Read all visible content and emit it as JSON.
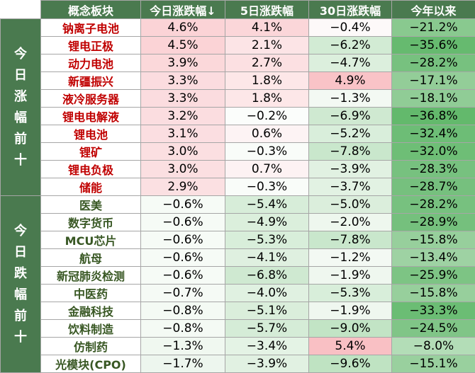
{
  "headers": [
    "概念板块",
    "今日涨跌幅↓",
    "5日涨跌幅",
    "30日涨跌幅",
    "今年以来"
  ],
  "groups": [
    {
      "label": "今日涨幅前十",
      "kind": "up",
      "rows": [
        {
          "name": "钠离子电池",
          "cells": [
            {
              "v": "4.6%",
              "c": "#fbd3d6"
            },
            {
              "v": "4.1%",
              "c": "#fbd6d9"
            },
            {
              "v": "−0.4%",
              "c": "#fdf9f9"
            },
            {
              "v": "−21.2%",
              "c": "#89c98f"
            }
          ]
        },
        {
          "name": "锂电正极",
          "cells": [
            {
              "v": "4.5%",
              "c": "#fbd3d6"
            },
            {
              "v": "2.1%",
              "c": "#fce4e6"
            },
            {
              "v": "−6.2%",
              "c": "#d2ebd4"
            },
            {
              "v": "−35.6%",
              "c": "#66ba6f"
            }
          ]
        },
        {
          "name": "动力电池",
          "cells": [
            {
              "v": "3.9%",
              "c": "#fbd8da"
            },
            {
              "v": "2.7%",
              "c": "#fce0e2"
            },
            {
              "v": "−4.7%",
              "c": "#dcefdd"
            },
            {
              "v": "−28.2%",
              "c": "#77c17f"
            }
          ]
        },
        {
          "name": "新疆振兴",
          "cells": [
            {
              "v": "3.3%",
              "c": "#fbdcdf"
            },
            {
              "v": "1.8%",
              "c": "#fde7e8"
            },
            {
              "v": "4.9%",
              "c": "#f9c3c7"
            },
            {
              "v": "−17.1%",
              "c": "#93cd98"
            }
          ]
        },
        {
          "name": "液冷服务器",
          "cells": [
            {
              "v": "3.3%",
              "c": "#fbdcdf"
            },
            {
              "v": "1.8%",
              "c": "#fde7e8"
            },
            {
              "v": "−1.3%",
              "c": "#f3f9f3"
            },
            {
              "v": "−18.1%",
              "c": "#90cc96"
            }
          ]
        },
        {
          "name": "锂电电解液",
          "cells": [
            {
              "v": "3.2%",
              "c": "#fbdde0"
            },
            {
              "v": "−0.2%",
              "c": "#fbfdfb"
            },
            {
              "v": "−6.9%",
              "c": "#cfe9d1"
            },
            {
              "v": "−36.8%",
              "c": "#63b96c"
            }
          ]
        },
        {
          "name": "锂电池",
          "cells": [
            {
              "v": "3.1%",
              "c": "#fbdee1"
            },
            {
              "v": "0.6%",
              "c": "#fdf3f4"
            },
            {
              "v": "−5.2%",
              "c": "#d9eedb"
            },
            {
              "v": "−32.4%",
              "c": "#6dbd76"
            }
          ]
        },
        {
          "name": "锂矿",
          "cells": [
            {
              "v": "3.0%",
              "c": "#fbdfe1"
            },
            {
              "v": "−0.3%",
              "c": "#f9fcf9"
            },
            {
              "v": "−7.8%",
              "c": "#c9e7cc"
            },
            {
              "v": "−32.0%",
              "c": "#6ebe76"
            }
          ]
        },
        {
          "name": "锂电负极",
          "cells": [
            {
              "v": "3.0%",
              "c": "#fbdfe1"
            },
            {
              "v": "0.7%",
              "c": "#fdf2f3"
            },
            {
              "v": "−3.9%",
              "c": "#e1f1e2"
            },
            {
              "v": "−28.3%",
              "c": "#77c17f"
            }
          ]
        },
        {
          "name": "储能",
          "cells": [
            {
              "v": "2.9%",
              "c": "#fbe0e2"
            },
            {
              "v": "−0.3%",
              "c": "#f9fcf9"
            },
            {
              "v": "−3.7%",
              "c": "#e2f2e3"
            },
            {
              "v": "−28.7%",
              "c": "#76c07e"
            }
          ]
        }
      ]
    },
    {
      "label": "今日跌幅前十",
      "kind": "down",
      "rows": [
        {
          "name": "医美",
          "cells": [
            {
              "v": "−0.6%",
              "c": "#f6fbf6"
            },
            {
              "v": "−5.4%",
              "c": "#d7edd9"
            },
            {
              "v": "−5.0%",
              "c": "#dbeedc"
            },
            {
              "v": "−28.2%",
              "c": "#77c17f"
            }
          ]
        },
        {
          "name": "数字货币",
          "cells": [
            {
              "v": "−0.6%",
              "c": "#f6fbf6"
            },
            {
              "v": "−4.9%",
              "c": "#dbefdc"
            },
            {
              "v": "−2.0%",
              "c": "#eef7ee"
            },
            {
              "v": "−28.9%",
              "c": "#75c07d"
            }
          ]
        },
        {
          "name": "MCU芯片",
          "cells": [
            {
              "v": "−0.6%",
              "c": "#f6fbf6"
            },
            {
              "v": "−5.3%",
              "c": "#d8eeda"
            },
            {
              "v": "−7.8%",
              "c": "#c9e7cc"
            },
            {
              "v": "−15.8%",
              "c": "#97cf9c"
            }
          ]
        },
        {
          "name": "航母",
          "cells": [
            {
              "v": "−0.6%",
              "c": "#f6fbf6"
            },
            {
              "v": "−4.1%",
              "c": "#dff0e0"
            },
            {
              "v": "−1.2%",
              "c": "#f3f9f3"
            },
            {
              "v": "−13.4%",
              "c": "#9ed2a3"
            }
          ]
        },
        {
          "name": "新冠肺炎检测",
          "cells": [
            {
              "v": "−0.6%",
              "c": "#f6fbf6"
            },
            {
              "v": "−6.8%",
              "c": "#cfe9d1"
            },
            {
              "v": "−1.9%",
              "c": "#eff7ef"
            },
            {
              "v": "−25.9%",
              "c": "#7dc484"
            }
          ]
        },
        {
          "name": "中医药",
          "cells": [
            {
              "v": "−0.7%",
              "c": "#f5faf5"
            },
            {
              "v": "−4.0%",
              "c": "#e0f1e1"
            },
            {
              "v": "−5.3%",
              "c": "#d8eeda"
            },
            {
              "v": "−15.8%",
              "c": "#97cf9c"
            }
          ]
        },
        {
          "name": "金融科技",
          "cells": [
            {
              "v": "−0.8%",
              "c": "#f4faf4"
            },
            {
              "v": "−5.1%",
              "c": "#daeedb"
            },
            {
              "v": "−1.9%",
              "c": "#eff7ef"
            },
            {
              "v": "−33.3%",
              "c": "#6bbd74"
            }
          ]
        },
        {
          "name": "饮料制造",
          "cells": [
            {
              "v": "−0.8%",
              "c": "#f4faf4"
            },
            {
              "v": "−5.7%",
              "c": "#d5ecd7"
            },
            {
              "v": "−9.0%",
              "c": "#c2e4c5"
            },
            {
              "v": "−24.5%",
              "c": "#80c587"
            }
          ]
        },
        {
          "name": "仿制药",
          "cells": [
            {
              "v": "−1.3%",
              "c": "#f0f8f0"
            },
            {
              "v": "−3.4%",
              "c": "#e4f3e5"
            },
            {
              "v": "5.4%",
              "c": "#f9c0c4"
            },
            {
              "v": "−8.0%",
              "c": "#b3ddb7"
            }
          ]
        },
        {
          "name": "光模块(CPO)",
          "cells": [
            {
              "v": "−1.7%",
              "c": "#edf6ee"
            },
            {
              "v": "−3.9%",
              "c": "#e1f1e2"
            },
            {
              "v": "−9.6%",
              "c": "#bfe3c2"
            },
            {
              "v": "−15.1%",
              "c": "#99d09e"
            }
          ]
        }
      ]
    }
  ]
}
